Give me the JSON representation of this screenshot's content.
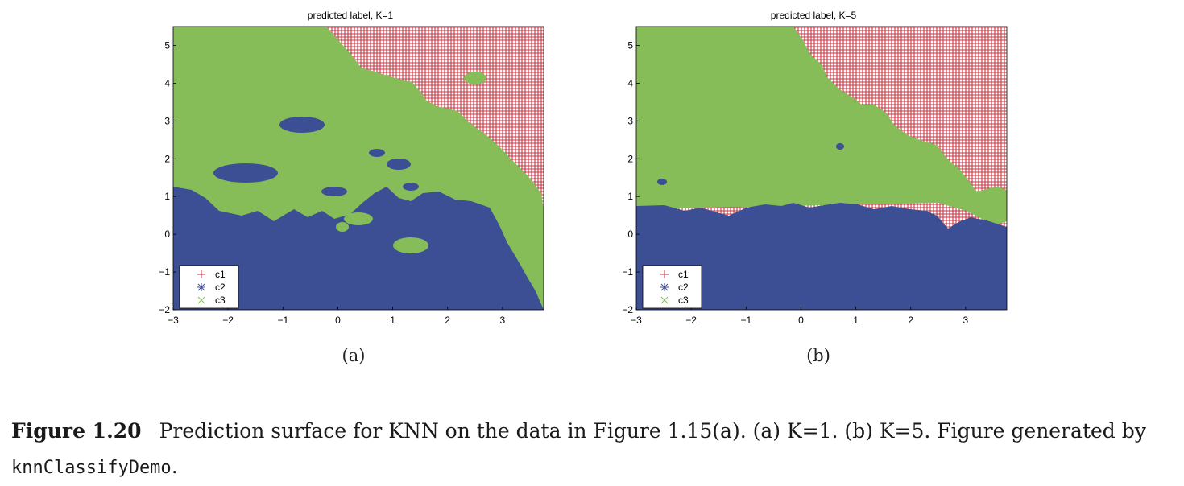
{
  "colors": {
    "c1": "#cc3340",
    "c2": "#3d4f94",
    "c3": "#86bd59",
    "axis": "#000000"
  },
  "chart_data": [
    {
      "type": "heatmap",
      "title": "predicted label,  K=1",
      "xlim": [
        -3,
        3.75
      ],
      "ylim": [
        -2,
        5.5
      ],
      "xticks": [
        "−3",
        "−2",
        "−1",
        "0",
        "1",
        "2",
        "3"
      ],
      "yticks": [
        "−2",
        "−1",
        "0",
        "1",
        "2",
        "3",
        "4",
        "5"
      ],
      "legend_position": "bottom-left",
      "legend": [
        {
          "label": "c1",
          "marker": "+"
        },
        {
          "label": "c2",
          "marker": "*"
        },
        {
          "label": "c3",
          "marker": "x"
        }
      ],
      "sublabel": "(a)"
    },
    {
      "type": "heatmap",
      "title": "predicted label,  K=5",
      "xlim": [
        -3,
        3.75
      ],
      "ylim": [
        -2,
        5.5
      ],
      "xticks": [
        "−3",
        "−2",
        "−1",
        "0",
        "1",
        "2",
        "3"
      ],
      "yticks": [
        "−2",
        "−1",
        "0",
        "1",
        "2",
        "3",
        "4",
        "5"
      ],
      "legend_position": "bottom-left",
      "legend": [
        {
          "label": "c1",
          "marker": "+"
        },
        {
          "label": "c2",
          "marker": "*"
        },
        {
          "label": "c3",
          "marker": "x"
        }
      ],
      "sublabel": "(b)"
    }
  ],
  "caption": {
    "figure_number": "Figure 1.20",
    "text": "Prediction surface for KNN on the data in Figure 1.15(a). (a) K=1. (b) K=5. Figure generated by ",
    "code": "knnClassifyDemo",
    "end": "."
  }
}
